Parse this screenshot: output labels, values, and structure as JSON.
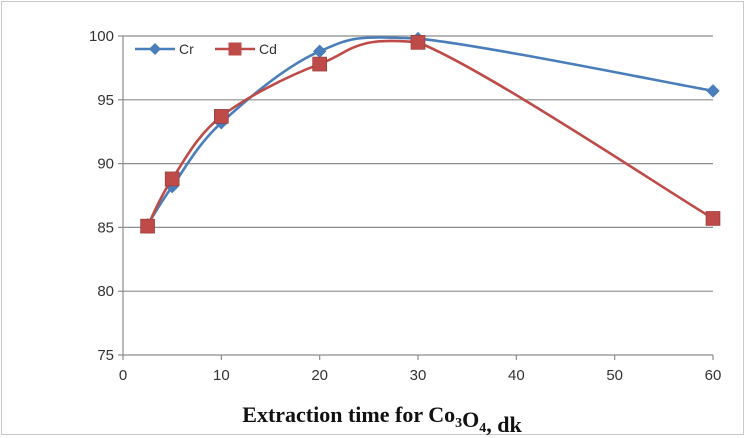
{
  "chart_data": {
    "type": "line",
    "x": [
      2.5,
      5,
      10,
      20,
      30,
      60
    ],
    "series": [
      {
        "name": "Cr",
        "values": [
          85.2,
          88.2,
          93.2,
          98.8,
          99.8,
          95.7
        ],
        "color": "#4a7ebb",
        "marker": "diamond"
      },
      {
        "name": "Cd",
        "values": [
          85.1,
          88.8,
          93.7,
          97.8,
          99.5,
          85.7
        ],
        "color": "#be4b48",
        "marker": "square"
      }
    ],
    "xticks": [
      "0",
      "10",
      "20",
      "30",
      "40",
      "50",
      "60"
    ],
    "yticks": [
      "75",
      "80",
      "85",
      "90",
      "95",
      "100"
    ],
    "xlim": [
      0,
      60
    ],
    "ylim": [
      75,
      100
    ],
    "xlabel": {
      "parts": [
        {
          "text": "Extraction  time for Co",
          "sub": false
        },
        {
          "text": "3",
          "sub": true
        },
        {
          "text": "O",
          "sub": false
        },
        {
          "text": "4",
          "sub": true
        },
        {
          "text": ", dk",
          "sub": false
        }
      ]
    },
    "ylabel": "",
    "title": "",
    "grid": "horizontal",
    "legend_position": "top-left",
    "smooth": true
  }
}
